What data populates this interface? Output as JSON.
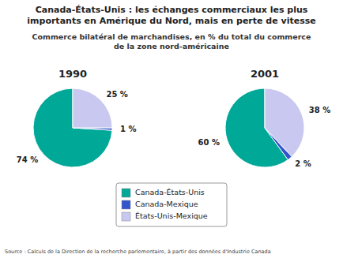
{
  "chart_data": {
    "type": "pie",
    "title": "Canada-États-Unis : les échanges commerciaux les plus\nimportants en Amérique du Nord, mais en perte de vitesse",
    "subtitle": "Commerce bilatéral de marchandises, en  % du total du commerce\nde la zone nord-américaine",
    "source": "Source : Calculs de la Direction de la recherche parlementaire, à partir des données d'Industrie Canada",
    "categories": [
      "Canada-États-Unis",
      "Canada-Mexique",
      "États-Unis-Mexique"
    ],
    "colors": [
      "#00a898",
      "#3355cc",
      "#c8c8f0"
    ],
    "series": [
      {
        "name": "1990",
        "values": [
          74,
          1,
          25
        ],
        "value_labels": [
          "74 %",
          "1 %",
          "25 %"
        ]
      },
      {
        "name": "2001",
        "values": [
          60,
          2,
          38
        ],
        "value_labels": [
          "60 %",
          "2 %",
          "38 %"
        ]
      }
    ],
    "data_labels": true,
    "legend": "center"
  }
}
